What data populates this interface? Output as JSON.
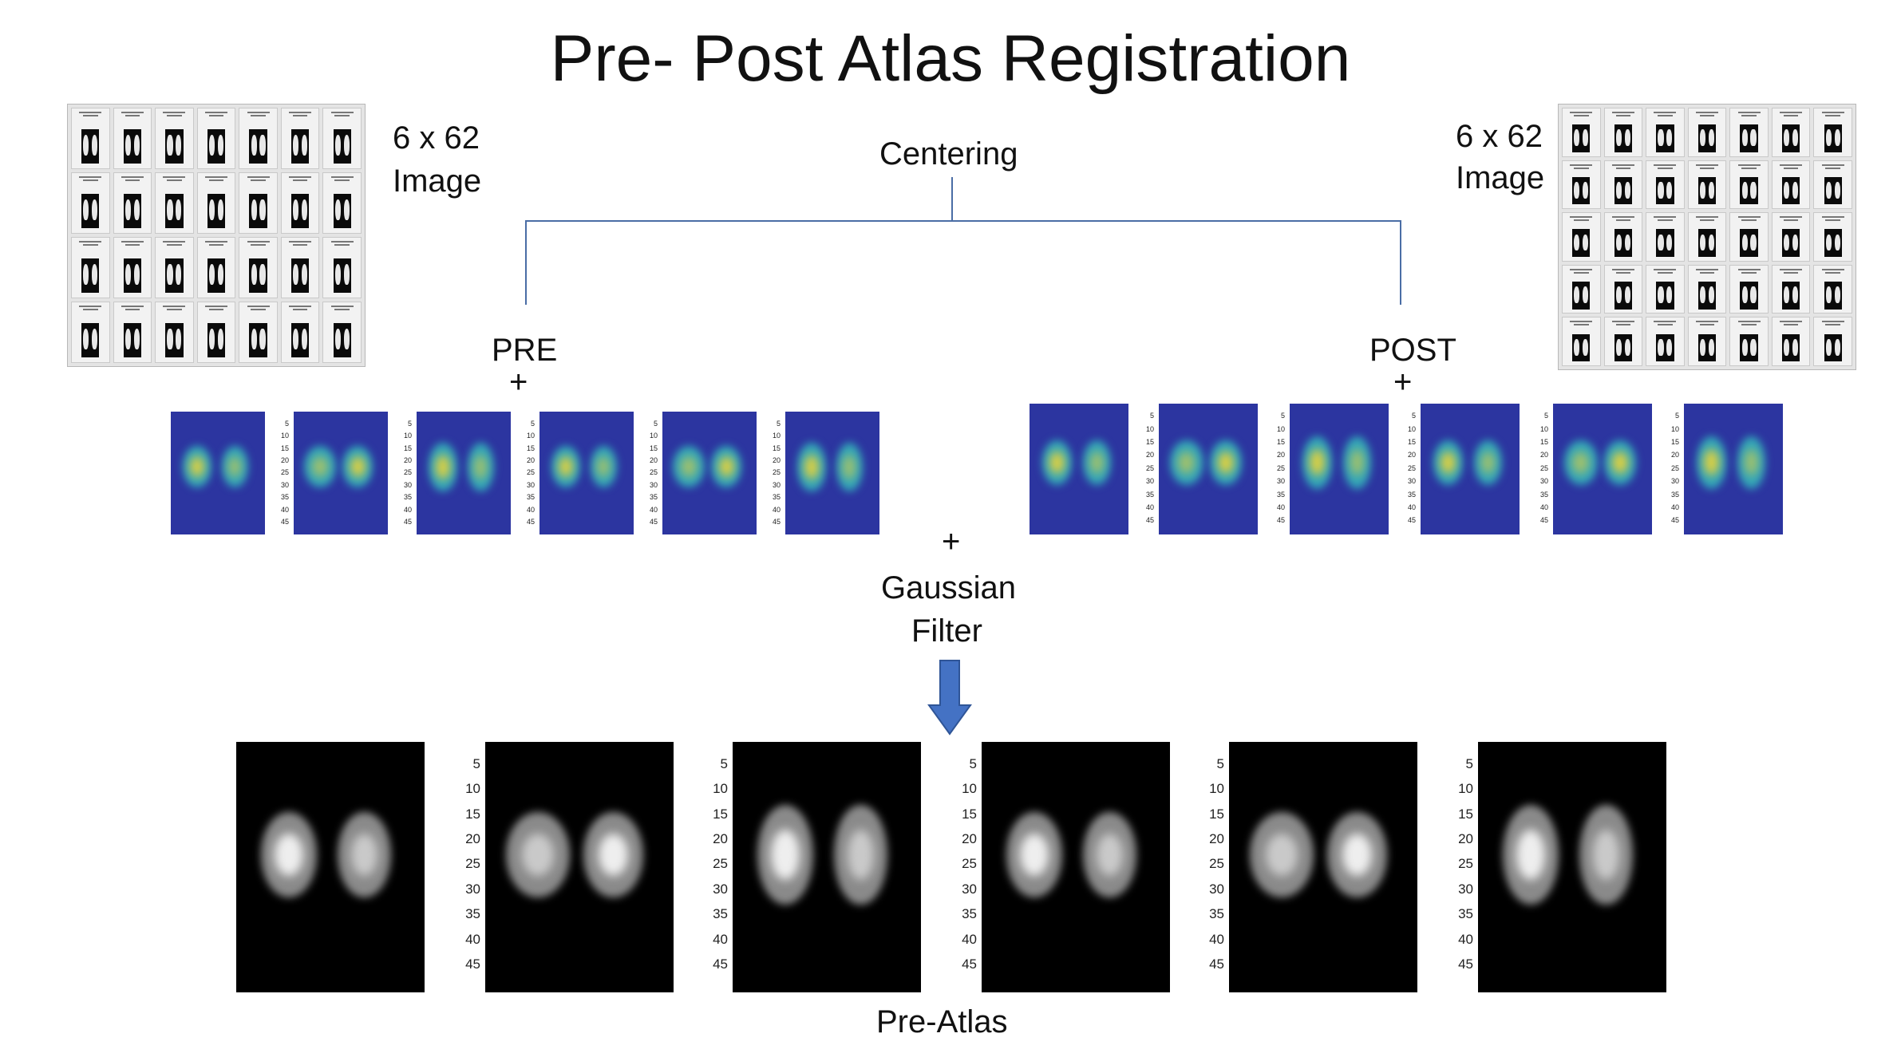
{
  "title": "Pre- Post Atlas Registration",
  "left_grid_label": [
    "6 x 62",
    "Image"
  ],
  "right_grid_label": [
    "6 x 62",
    "Image"
  ],
  "centering_label": "Centering",
  "pre_label": "PRE",
  "post_label": "POST",
  "plus_symbol": "+",
  "gaussian_label": [
    "Gaussian",
    "Filter"
  ],
  "bottom_label": "Pre-Atlas",
  "axis_ticks": [
    "5",
    "10",
    "15",
    "20",
    "25",
    "30",
    "35",
    "40",
    "45"
  ],
  "colors": {
    "colormap_background": "#2c35a0",
    "arrow": "#4472c4",
    "connector": "#4a6da5"
  },
  "icons": {
    "down_arrow": "down-arrow-icon"
  }
}
